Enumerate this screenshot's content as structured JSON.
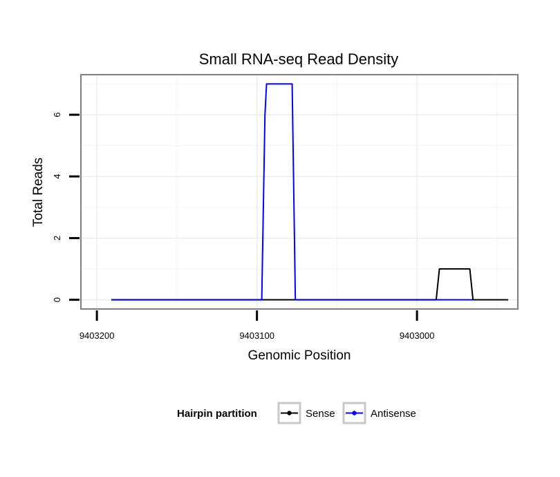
{
  "chart_data": {
    "type": "line",
    "title": "Small RNA-seq Read Density",
    "xlabel": "Genomic Position",
    "ylabel": "Total Reads",
    "xlim": [
      9403210,
      9402937
    ],
    "ylim": [
      -0.3,
      7.3
    ],
    "x_reversed": true,
    "grid": true,
    "x_ticks": [
      9403200,
      9403100,
      9403000
    ],
    "x_tick_labels": [
      "9403200",
      "9403100",
      "9403000"
    ],
    "y_ticks": [
      0,
      2,
      4,
      6
    ],
    "y_tick_labels": [
      "0",
      "2",
      "4",
      "6"
    ],
    "x_minor_gridlines": [
      9403150,
      9403050,
      9402950
    ],
    "y_minor_gridlines": [
      1,
      3,
      5,
      7
    ],
    "legend": {
      "title": "Hairpin partition",
      "position": "bottom"
    },
    "series": [
      {
        "name": "Sense",
        "color": "#000000",
        "x": [
          9403191,
          9402988,
          9402986,
          9402967,
          9402965,
          9402943
        ],
        "y": [
          0,
          0,
          1,
          1,
          0,
          0
        ]
      },
      {
        "name": "Antisense",
        "color": "#0000ff",
        "x": [
          9403191,
          9403097,
          9403095,
          9403094,
          9403078,
          9403076,
          9402965
        ],
        "y": [
          0,
          0,
          6,
          7,
          7,
          0,
          0
        ]
      }
    ]
  }
}
